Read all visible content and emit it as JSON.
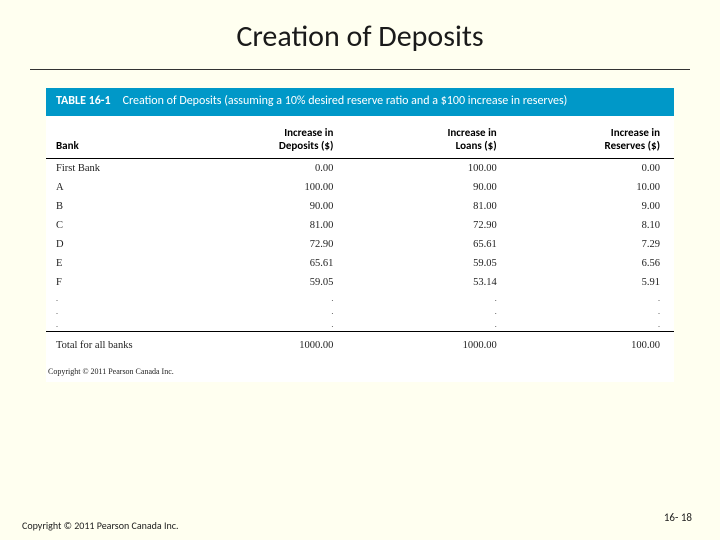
{
  "title": "Creation of Deposits",
  "table": {
    "label": "TABLE 16-1",
    "caption": "Creation of Deposits (assuming a 10% desired reserve ratio and a $100 increase in reserves)",
    "columns": [
      "Bank",
      "Increase in Deposits ($)",
      "Increase in Loans ($)",
      "Increase in Reserves ($)"
    ],
    "rows": [
      [
        "First Bank",
        "0.00",
        "100.00",
        "0.00"
      ],
      [
        "A",
        "100.00",
        "90.00",
        "10.00"
      ],
      [
        "B",
        "90.00",
        "81.00",
        "9.00"
      ],
      [
        "C",
        "81.00",
        "72.90",
        "8.10"
      ],
      [
        "D",
        "72.90",
        "65.61",
        "7.29"
      ],
      [
        "E",
        "65.61",
        "59.05",
        "6.56"
      ],
      [
        "F",
        "59.05",
        "53.14",
        "5.91"
      ]
    ],
    "ellipsis_rows": 3,
    "total": [
      "Total for all banks",
      "1000.00",
      "1000.00",
      "100.00"
    ],
    "figure_copyright": "Copyright © 2011 Pearson Canada Inc."
  },
  "footer": {
    "copyright": "Copyright © 2011 Pearson Canada Inc.",
    "page": "16- 18"
  }
}
